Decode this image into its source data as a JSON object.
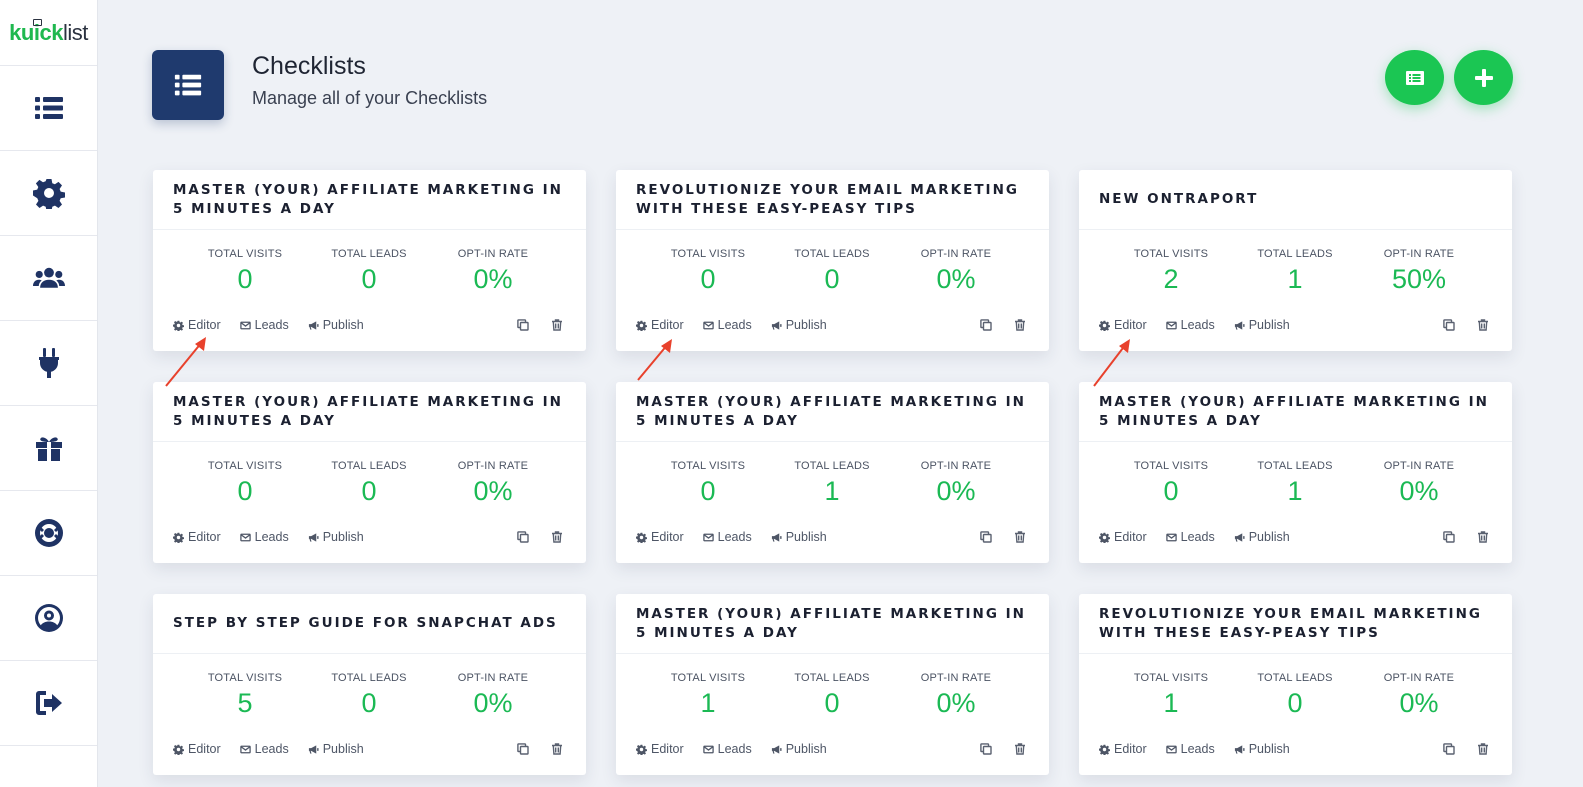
{
  "sidebar": {
    "logo_bold": "kuick",
    "logo_light": "list",
    "items": [
      {
        "icon": "list-icon"
      },
      {
        "icon": "gear-icon"
      },
      {
        "icon": "users-icon"
      },
      {
        "icon": "plug-icon"
      },
      {
        "icon": "gift-icon"
      },
      {
        "icon": "lifebuoy-icon"
      },
      {
        "icon": "user-circle-icon"
      },
      {
        "icon": "sign-out-icon"
      }
    ]
  },
  "header": {
    "title": "Checklists",
    "subtitle": "Manage all of your Checklists",
    "icon": "list-icon",
    "buttons": [
      {
        "icon": "list-alt-icon"
      },
      {
        "icon": "plus-icon"
      }
    ]
  },
  "labels": {
    "visits": "TOTAL VISITS",
    "leads": "TOTAL LEADS",
    "optin": "OPT-IN RATE",
    "editor": "Editor",
    "leads_action": "Leads",
    "publish": "Publish"
  },
  "cards": [
    {
      "title": "MASTER (YOUR) AFFILIATE MARKETING IN 5 MINUTES A DAY",
      "visits": "0",
      "leads": "0",
      "optin": "0%"
    },
    {
      "title": "REVOLUTIONIZE YOUR EMAIL MARKETING WITH THESE EASY-PEASY TIPS",
      "visits": "0",
      "leads": "0",
      "optin": "0%"
    },
    {
      "title": "NEW ONTRAPORT",
      "visits": "2",
      "leads": "1",
      "optin": "50%"
    },
    {
      "title": "MASTER (YOUR) AFFILIATE MARKETING IN 5 MINUTES A DAY",
      "visits": "0",
      "leads": "0",
      "optin": "0%"
    },
    {
      "title": "MASTER (YOUR) AFFILIATE MARKETING IN 5 MINUTES A DAY",
      "visits": "0",
      "leads": "1",
      "optin": "0%"
    },
    {
      "title": "MASTER (YOUR) AFFILIATE MARKETING IN 5 MINUTES A DAY",
      "visits": "0",
      "leads": "1",
      "optin": "0%"
    },
    {
      "title": "STEP BY STEP GUIDE FOR SNAPCHAT ADS",
      "visits": "5",
      "leads": "0",
      "optin": "0%"
    },
    {
      "title": "MASTER (YOUR) AFFILIATE MARKETING IN 5 MINUTES A DAY",
      "visits": "1",
      "leads": "0",
      "optin": "0%"
    },
    {
      "title": "REVOLUTIONIZE YOUR EMAIL MARKETING WITH THESE EASY-PEASY TIPS",
      "visits": "1",
      "leads": "0",
      "optin": "0%"
    }
  ],
  "colors": {
    "accent_green": "#1bc653",
    "navy": "#1f3a6e",
    "annotation_red": "#e8412c"
  }
}
